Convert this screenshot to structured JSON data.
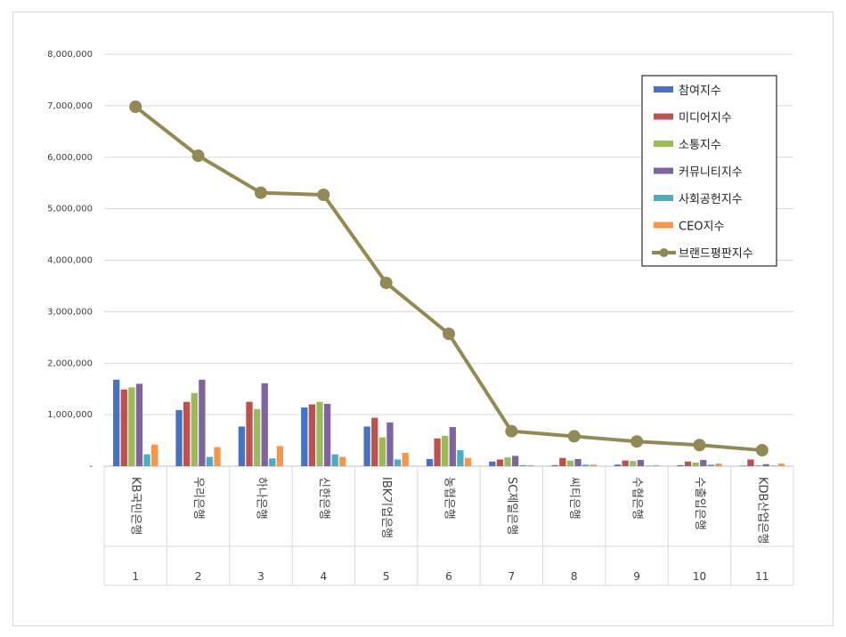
{
  "chart_data": {
    "type": "bar",
    "title": "",
    "xlabel": "",
    "ylabel": "",
    "ylim": [
      0,
      8000000
    ],
    "y_ticks": [
      "-",
      "1,000,000",
      "2,000,000",
      "3,000,000",
      "4,000,000",
      "5,000,000",
      "6,000,000",
      "7,000,000",
      "8,000,000"
    ],
    "grid": true,
    "legend_position": "top-right",
    "ranks": [
      "1",
      "2",
      "3",
      "4",
      "5",
      "6",
      "7",
      "8",
      "9",
      "10",
      "11"
    ],
    "categories": [
      "KB국민은행",
      "우리은행",
      "하나은행",
      "신한은행",
      "IBK기업은행",
      "농협은행",
      "SC제일은행",
      "씨티은행",
      "수협은행",
      "수출입은행",
      "KDB산업은행"
    ],
    "series": [
      {
        "name": "참여지수",
        "kind": "bar",
        "color": "#4472c4",
        "values": [
          1680000,
          1090000,
          770000,
          1140000,
          770000,
          140000,
          90000,
          20000,
          30000,
          20000,
          10000
        ]
      },
      {
        "name": "미디어지수",
        "kind": "bar",
        "color": "#c0504d",
        "values": [
          1490000,
          1250000,
          1250000,
          1200000,
          940000,
          540000,
          130000,
          160000,
          110000,
          90000,
          130000
        ]
      },
      {
        "name": "소통지수",
        "kind": "bar",
        "color": "#9bbb59",
        "values": [
          1530000,
          1420000,
          1110000,
          1250000,
          560000,
          590000,
          170000,
          110000,
          100000,
          70000,
          20000
        ]
      },
      {
        "name": "커뮤니티지수",
        "kind": "bar",
        "color": "#8064a2",
        "values": [
          1600000,
          1680000,
          1610000,
          1210000,
          850000,
          760000,
          200000,
          140000,
          120000,
          120000,
          40000
        ]
      },
      {
        "name": "사회공헌지수",
        "kind": "bar",
        "color": "#4bacc6",
        "values": [
          230000,
          180000,
          150000,
          230000,
          130000,
          310000,
          20000,
          30000,
          10000,
          30000,
          10000
        ]
      },
      {
        "name": "CEO지수",
        "kind": "bar",
        "color": "#f79646",
        "values": [
          420000,
          370000,
          390000,
          180000,
          260000,
          160000,
          20000,
          30000,
          20000,
          50000,
          50000
        ]
      },
      {
        "name": "브랜드평판지수",
        "kind": "line",
        "color": "#938953",
        "values": [
          6980000,
          6030000,
          5310000,
          5270000,
          3560000,
          2570000,
          680000,
          580000,
          480000,
          410000,
          310000
        ]
      }
    ]
  }
}
